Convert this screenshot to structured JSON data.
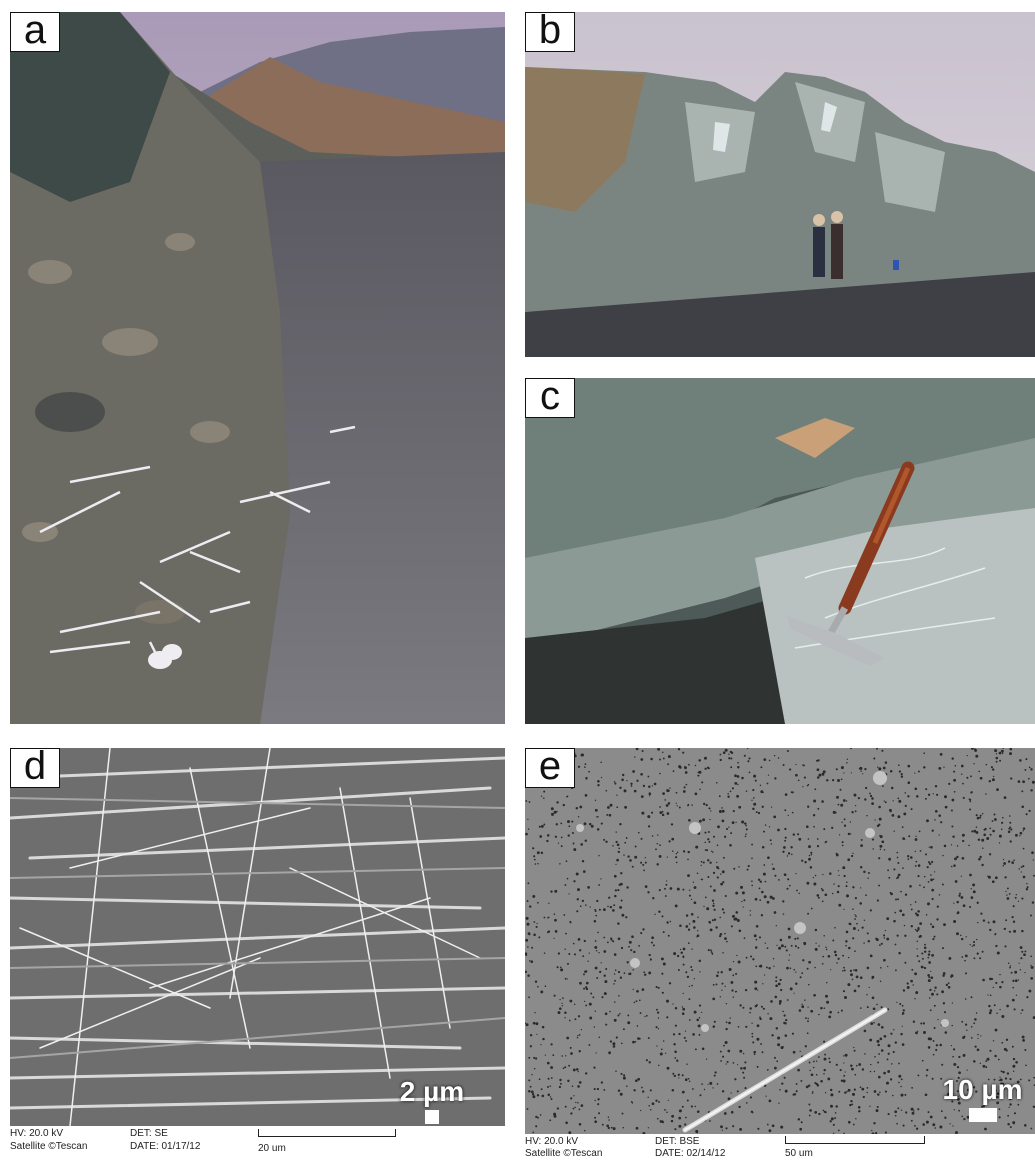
{
  "panels": {
    "a": {
      "label": "a"
    },
    "b": {
      "label": "b"
    },
    "c": {
      "label": "c"
    },
    "d": {
      "label": "d",
      "scale": "2 µm",
      "meta": {
        "hv": "HV: 20.0 kV",
        "brand": "Satellite ©Tescan",
        "det": "DET: SE",
        "date": "DATE: 01/17/12",
        "ruler": "20 um"
      }
    },
    "e": {
      "label": "e",
      "scale": "10 µm",
      "meta": {
        "hv": "HV: 20.0 kV",
        "brand": "Satellite ©Tescan",
        "det": "DET: BSE",
        "date": "DATE: 02/14/12",
        "ruler": "50 um"
      }
    }
  },
  "colors": {
    "sky": "#b7a9bd",
    "road": "#4a4a52",
    "rock": "#5d6a6a",
    "sem_bg": "#8c8c8c"
  }
}
